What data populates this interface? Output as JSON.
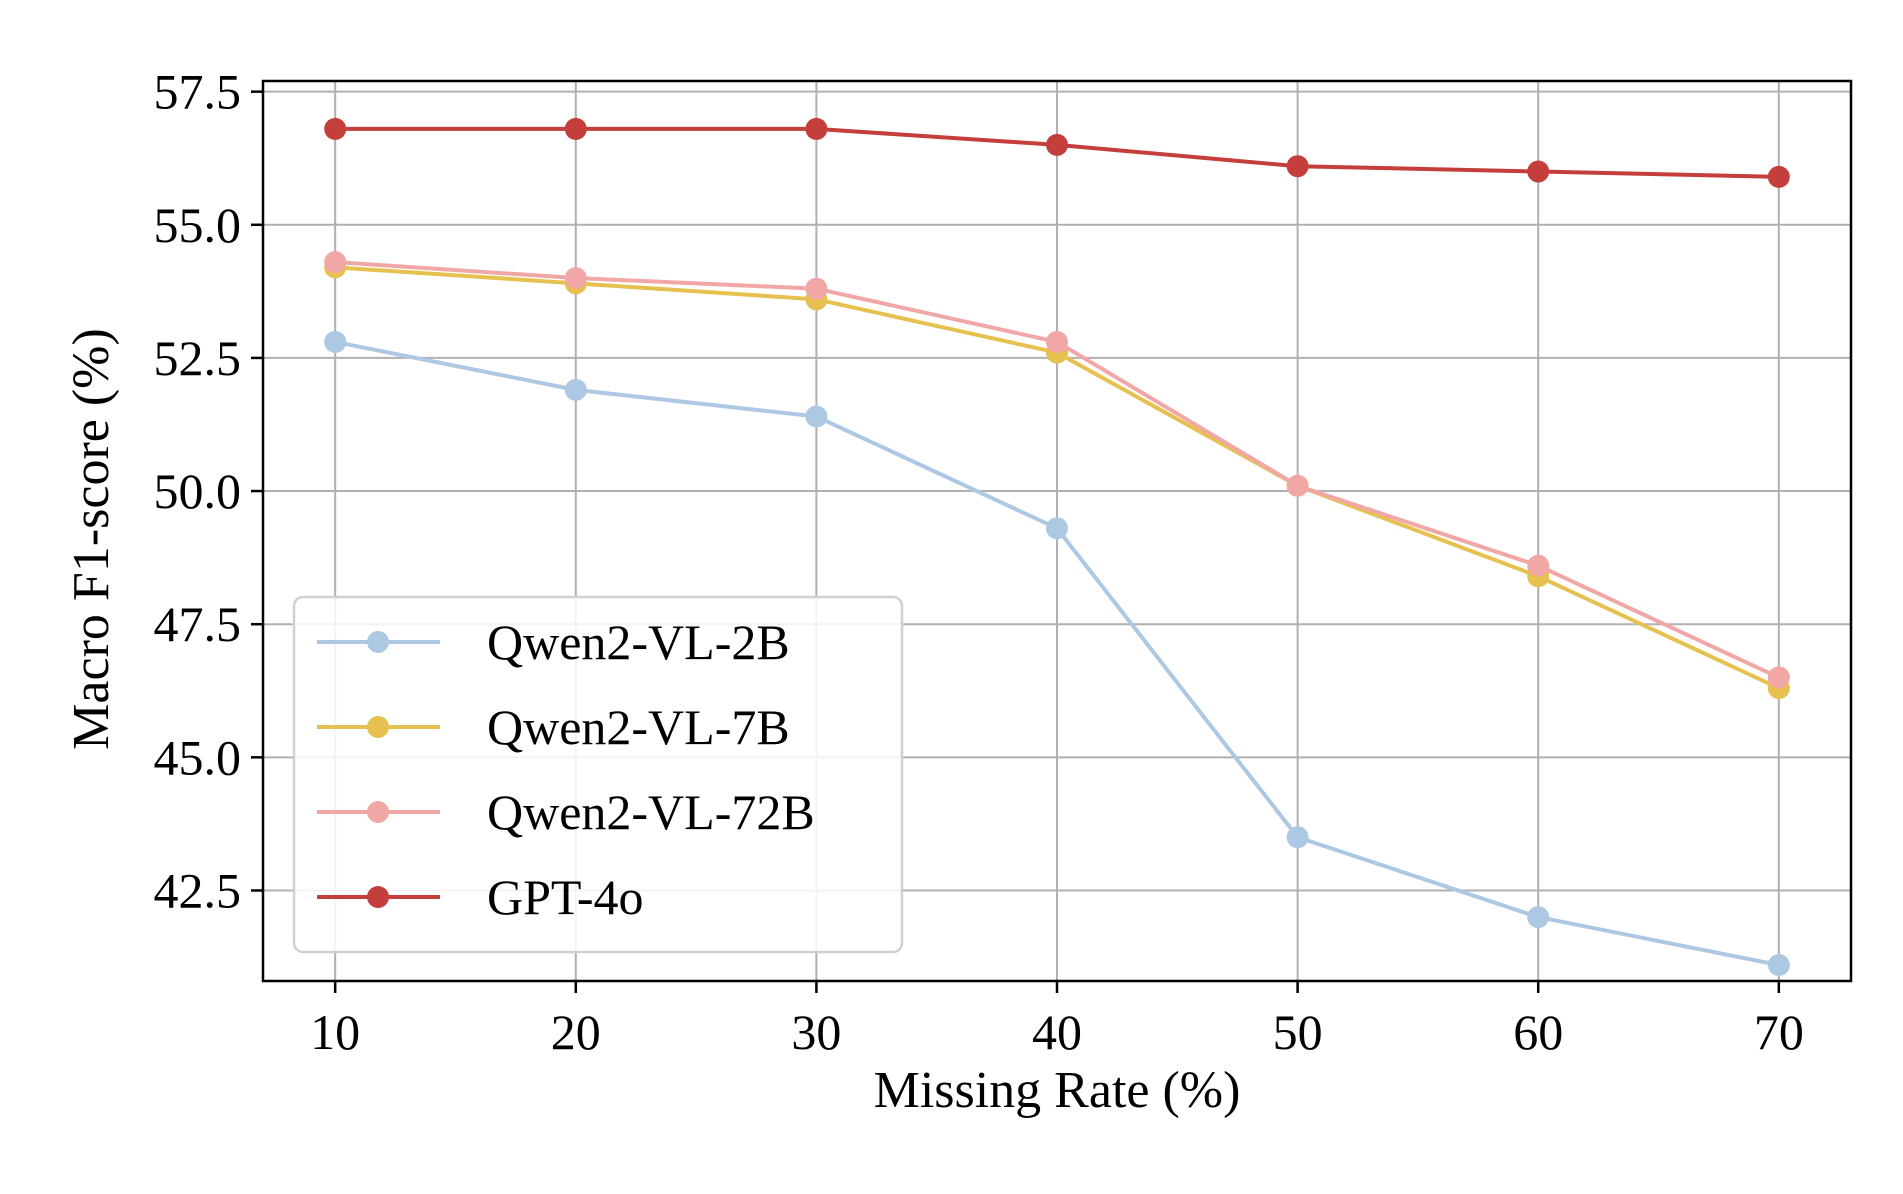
{
  "chart_data": {
    "type": "line",
    "title": "",
    "xlabel": "Missing Rate (%)",
    "ylabel": "Macro F1-score (%)",
    "x": [
      10,
      20,
      30,
      40,
      50,
      60,
      70
    ],
    "x_ticks": [
      "10",
      "20",
      "30",
      "40",
      "50",
      "60",
      "70"
    ],
    "y_ticks": [
      "42.5",
      "45.0",
      "47.5",
      "50.0",
      "52.5",
      "55.0",
      "57.5"
    ],
    "y_tick_values": [
      42.5,
      45.0,
      47.5,
      50.0,
      52.5,
      55.0,
      57.5
    ],
    "xlim": [
      7,
      73
    ],
    "ylim": [
      40.8,
      57.7
    ],
    "grid": true,
    "legend_position": "lower-left",
    "series": [
      {
        "name": "Qwen2-VL-2B",
        "color": "#adc8e2",
        "values": [
          52.8,
          51.9,
          51.4,
          49.3,
          43.5,
          42.0,
          41.1
        ]
      },
      {
        "name": "Qwen2-VL-7B",
        "color": "#e6c14f",
        "values": [
          54.2,
          53.9,
          53.6,
          52.6,
          50.1,
          48.4,
          46.3
        ]
      },
      {
        "name": "Qwen2-VL-72B",
        "color": "#f2a7a7",
        "values": [
          54.3,
          54.0,
          53.8,
          52.8,
          50.1,
          48.6,
          46.5
        ]
      },
      {
        "name": "GPT-4o",
        "color": "#c43f3b",
        "values": [
          56.8,
          56.8,
          56.8,
          56.5,
          56.1,
          56.0,
          55.9
        ]
      }
    ]
  }
}
